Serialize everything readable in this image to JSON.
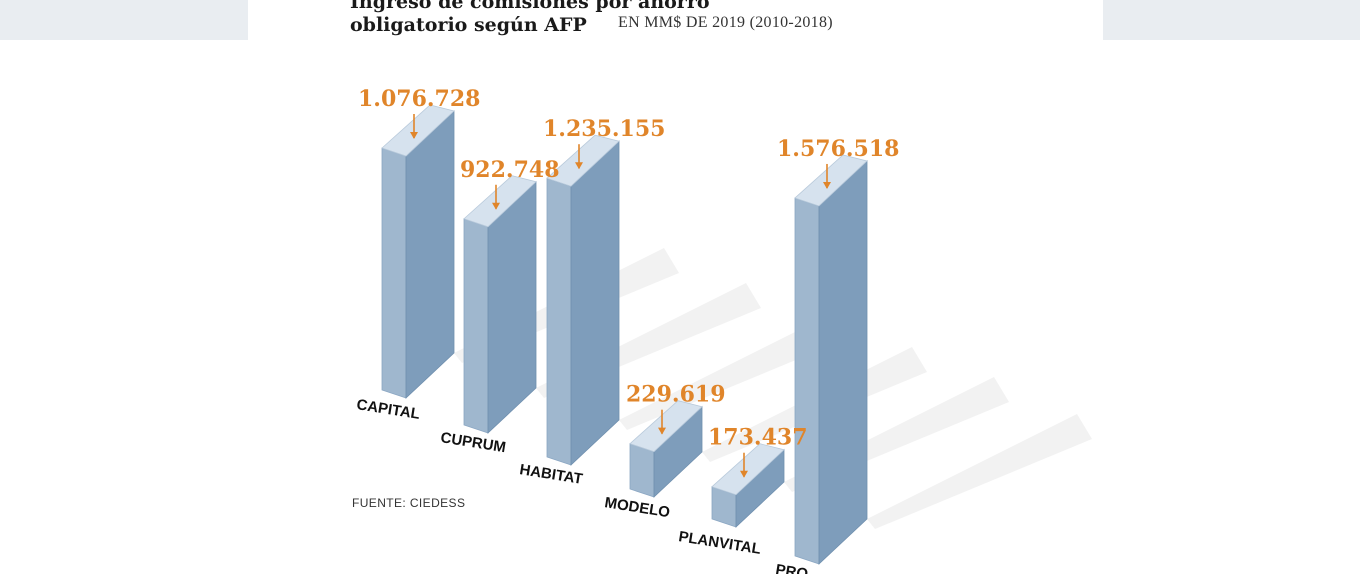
{
  "header": {
    "title_line1": "Ingreso de comisiones por ahorro",
    "title_line2": "obligatorio según AFP",
    "subtitle": "EN MM$ DE 2019 (2010-2018)"
  },
  "footer": {
    "source": "FUENTE: CIEDESS"
  },
  "colors": {
    "bar_front": "#7e9dbb",
    "bar_side": "#9fb7ce",
    "bar_top": "#d6e2ee",
    "value_label": "#e0852a",
    "shadow": "#ececec"
  },
  "chart_data": {
    "type": "bar",
    "style": "3d",
    "title": "Ingreso de comisiones por ahorro obligatorio según AFP",
    "subtitle": "EN MM$ DE 2019 (2010-2018)",
    "categories": [
      "CAPITAL",
      "CUPRUM",
      "HABITAT",
      "MODELO",
      "PLANVITAL",
      "PROVIDA"
    ],
    "values": [
      1076728,
      922748,
      1235155,
      229619,
      173437,
      1576518
    ],
    "value_labels": [
      "1.076.728",
      "922.748",
      "1.235.155",
      "229.619",
      "173.437",
      "1.576.518"
    ],
    "category_labels_shown": [
      "CAPITAL",
      "CUPRUM",
      "HABITAT",
      "MODELO",
      "PLANVITAL",
      "PRO…"
    ],
    "unit": "MM$ de 2019",
    "grid": false,
    "legend": "none"
  }
}
